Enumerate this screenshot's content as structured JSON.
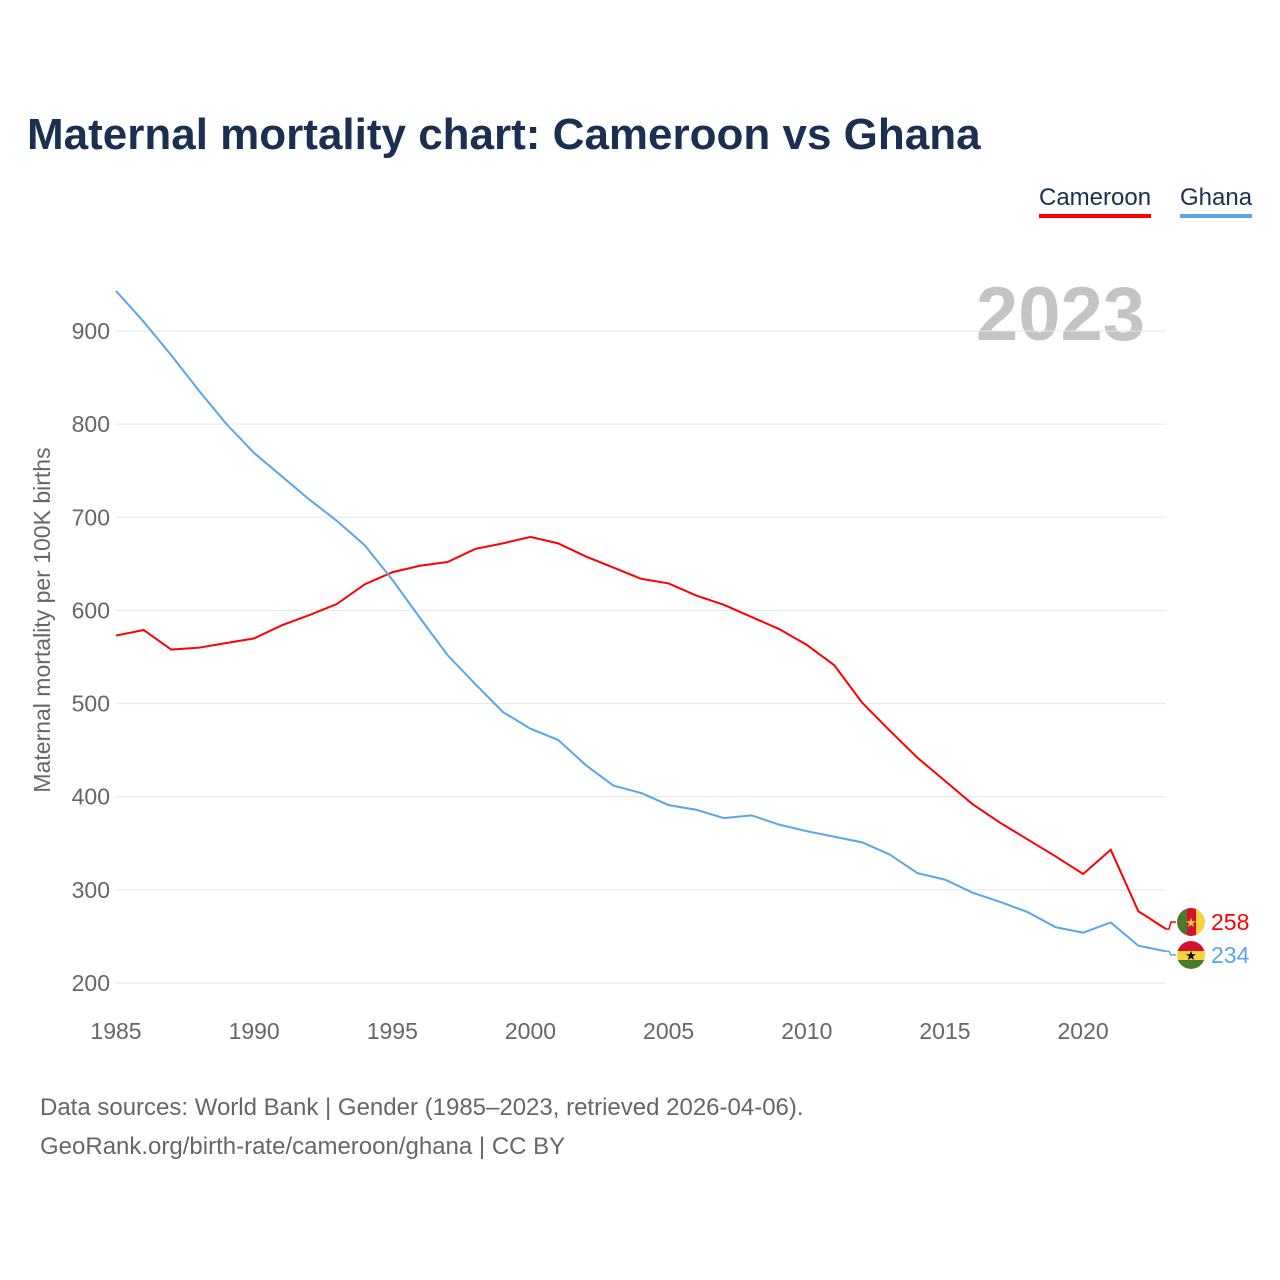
{
  "title": "Maternal mortality chart: Cameroon vs Ghana",
  "legend": [
    "Cameroon",
    "Ghana"
  ],
  "source_line1": "Data sources: World Bank | Gender (1985–2023, retrieved 2026-04-06).",
  "source_line2": "GeoRank.org/birth-rate/cameroon/ghana | CC BY",
  "chart_data": {
    "type": "line",
    "title": "Maternal mortality chart: Cameroon vs Ghana",
    "ylabel": "Maternal mortality per 100K births",
    "xlabel": "",
    "year_label": "2023",
    "xlim": [
      1985,
      2023
    ],
    "ylim": [
      200,
      900
    ],
    "xticks": [
      1985,
      1990,
      1995,
      2000,
      2005,
      2010,
      2015,
      2020
    ],
    "yticks": [
      200,
      300,
      400,
      500,
      600,
      700,
      800,
      900
    ],
    "x": [
      1985,
      1986,
      1987,
      1988,
      1989,
      1990,
      1991,
      1992,
      1993,
      1994,
      1995,
      1996,
      1997,
      1998,
      1999,
      2000,
      2001,
      2002,
      2003,
      2004,
      2005,
      2006,
      2007,
      2008,
      2009,
      2010,
      2011,
      2012,
      2013,
      2014,
      2015,
      2016,
      2017,
      2018,
      2019,
      2020,
      2021,
      2022,
      2023
    ],
    "series": [
      {
        "name": "Cameroon",
        "color": "#ff0000",
        "end_label": "258",
        "values": [
          573,
          579,
          558,
          560,
          565,
          570,
          584,
          595,
          607,
          628,
          641,
          648,
          652,
          666,
          672,
          679,
          672,
          658,
          646,
          634,
          629,
          616,
          606,
          593,
          580,
          563,
          541,
          501,
          471,
          442,
          417,
          392,
          372,
          354,
          336,
          317,
          343,
          277,
          258
        ]
      },
      {
        "name": "Ghana",
        "color": "#5aa5ea",
        "end_label": "234",
        "values": [
          943,
          910,
          874,
          836,
          800,
          769,
          744,
          719,
          696,
          670,
          633,
          592,
          552,
          521,
          491,
          473,
          461,
          434,
          412,
          404,
          391,
          386,
          377,
          380,
          370,
          363,
          357,
          351,
          338,
          318,
          311,
          297,
          287,
          276,
          260,
          254,
          265,
          240,
          234
        ]
      }
    ]
  }
}
